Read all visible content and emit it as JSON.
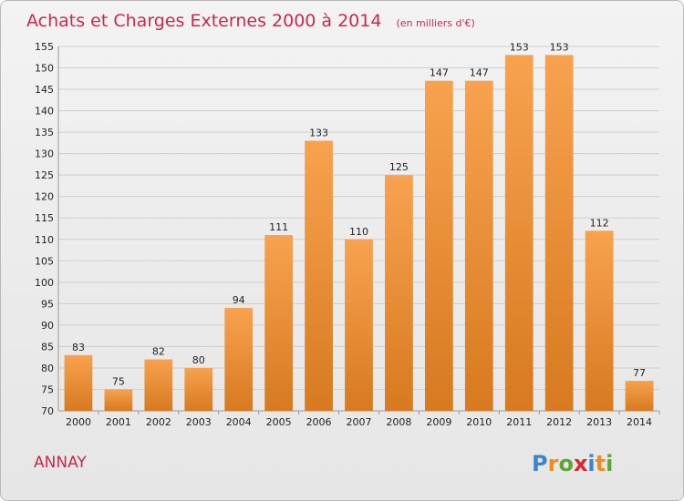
{
  "chart_data": {
    "type": "bar",
    "title": "Achats et Charges Externes 2000 à 2014",
    "subtitle": "(en milliers d'€)",
    "categories": [
      "2000",
      "2001",
      "2002",
      "2003",
      "2004",
      "2005",
      "2006",
      "2007",
      "2008",
      "2009",
      "2010",
      "2011",
      "2012",
      "2013",
      "2014"
    ],
    "values": [
      83,
      75,
      82,
      80,
      94,
      111,
      133,
      110,
      125,
      147,
      147,
      153,
      153,
      112,
      77
    ],
    "ylim": [
      70,
      155
    ],
    "yticks": [
      70,
      75,
      80,
      85,
      90,
      95,
      100,
      105,
      110,
      115,
      120,
      125,
      130,
      135,
      140,
      145,
      150,
      155
    ],
    "xlabel": "",
    "ylabel": "",
    "grid": true,
    "bar_color_top": "#f8a24f",
    "bar_color_bottom": "#d77a20"
  },
  "commune": "ANNAY",
  "logo": {
    "text": "Proxiti",
    "letters": [
      {
        "ch": "P",
        "color": "#3b86c7"
      },
      {
        "ch": "r",
        "color": "#f08b1d"
      },
      {
        "ch": "o",
        "color": "#5aa832"
      },
      {
        "ch": "x",
        "color": "#d8262f"
      },
      {
        "ch": "i",
        "color": "#3b86c7"
      },
      {
        "ch": "t",
        "color": "#f08b1d"
      },
      {
        "ch": "i",
        "color": "#5aa832"
      }
    ]
  }
}
